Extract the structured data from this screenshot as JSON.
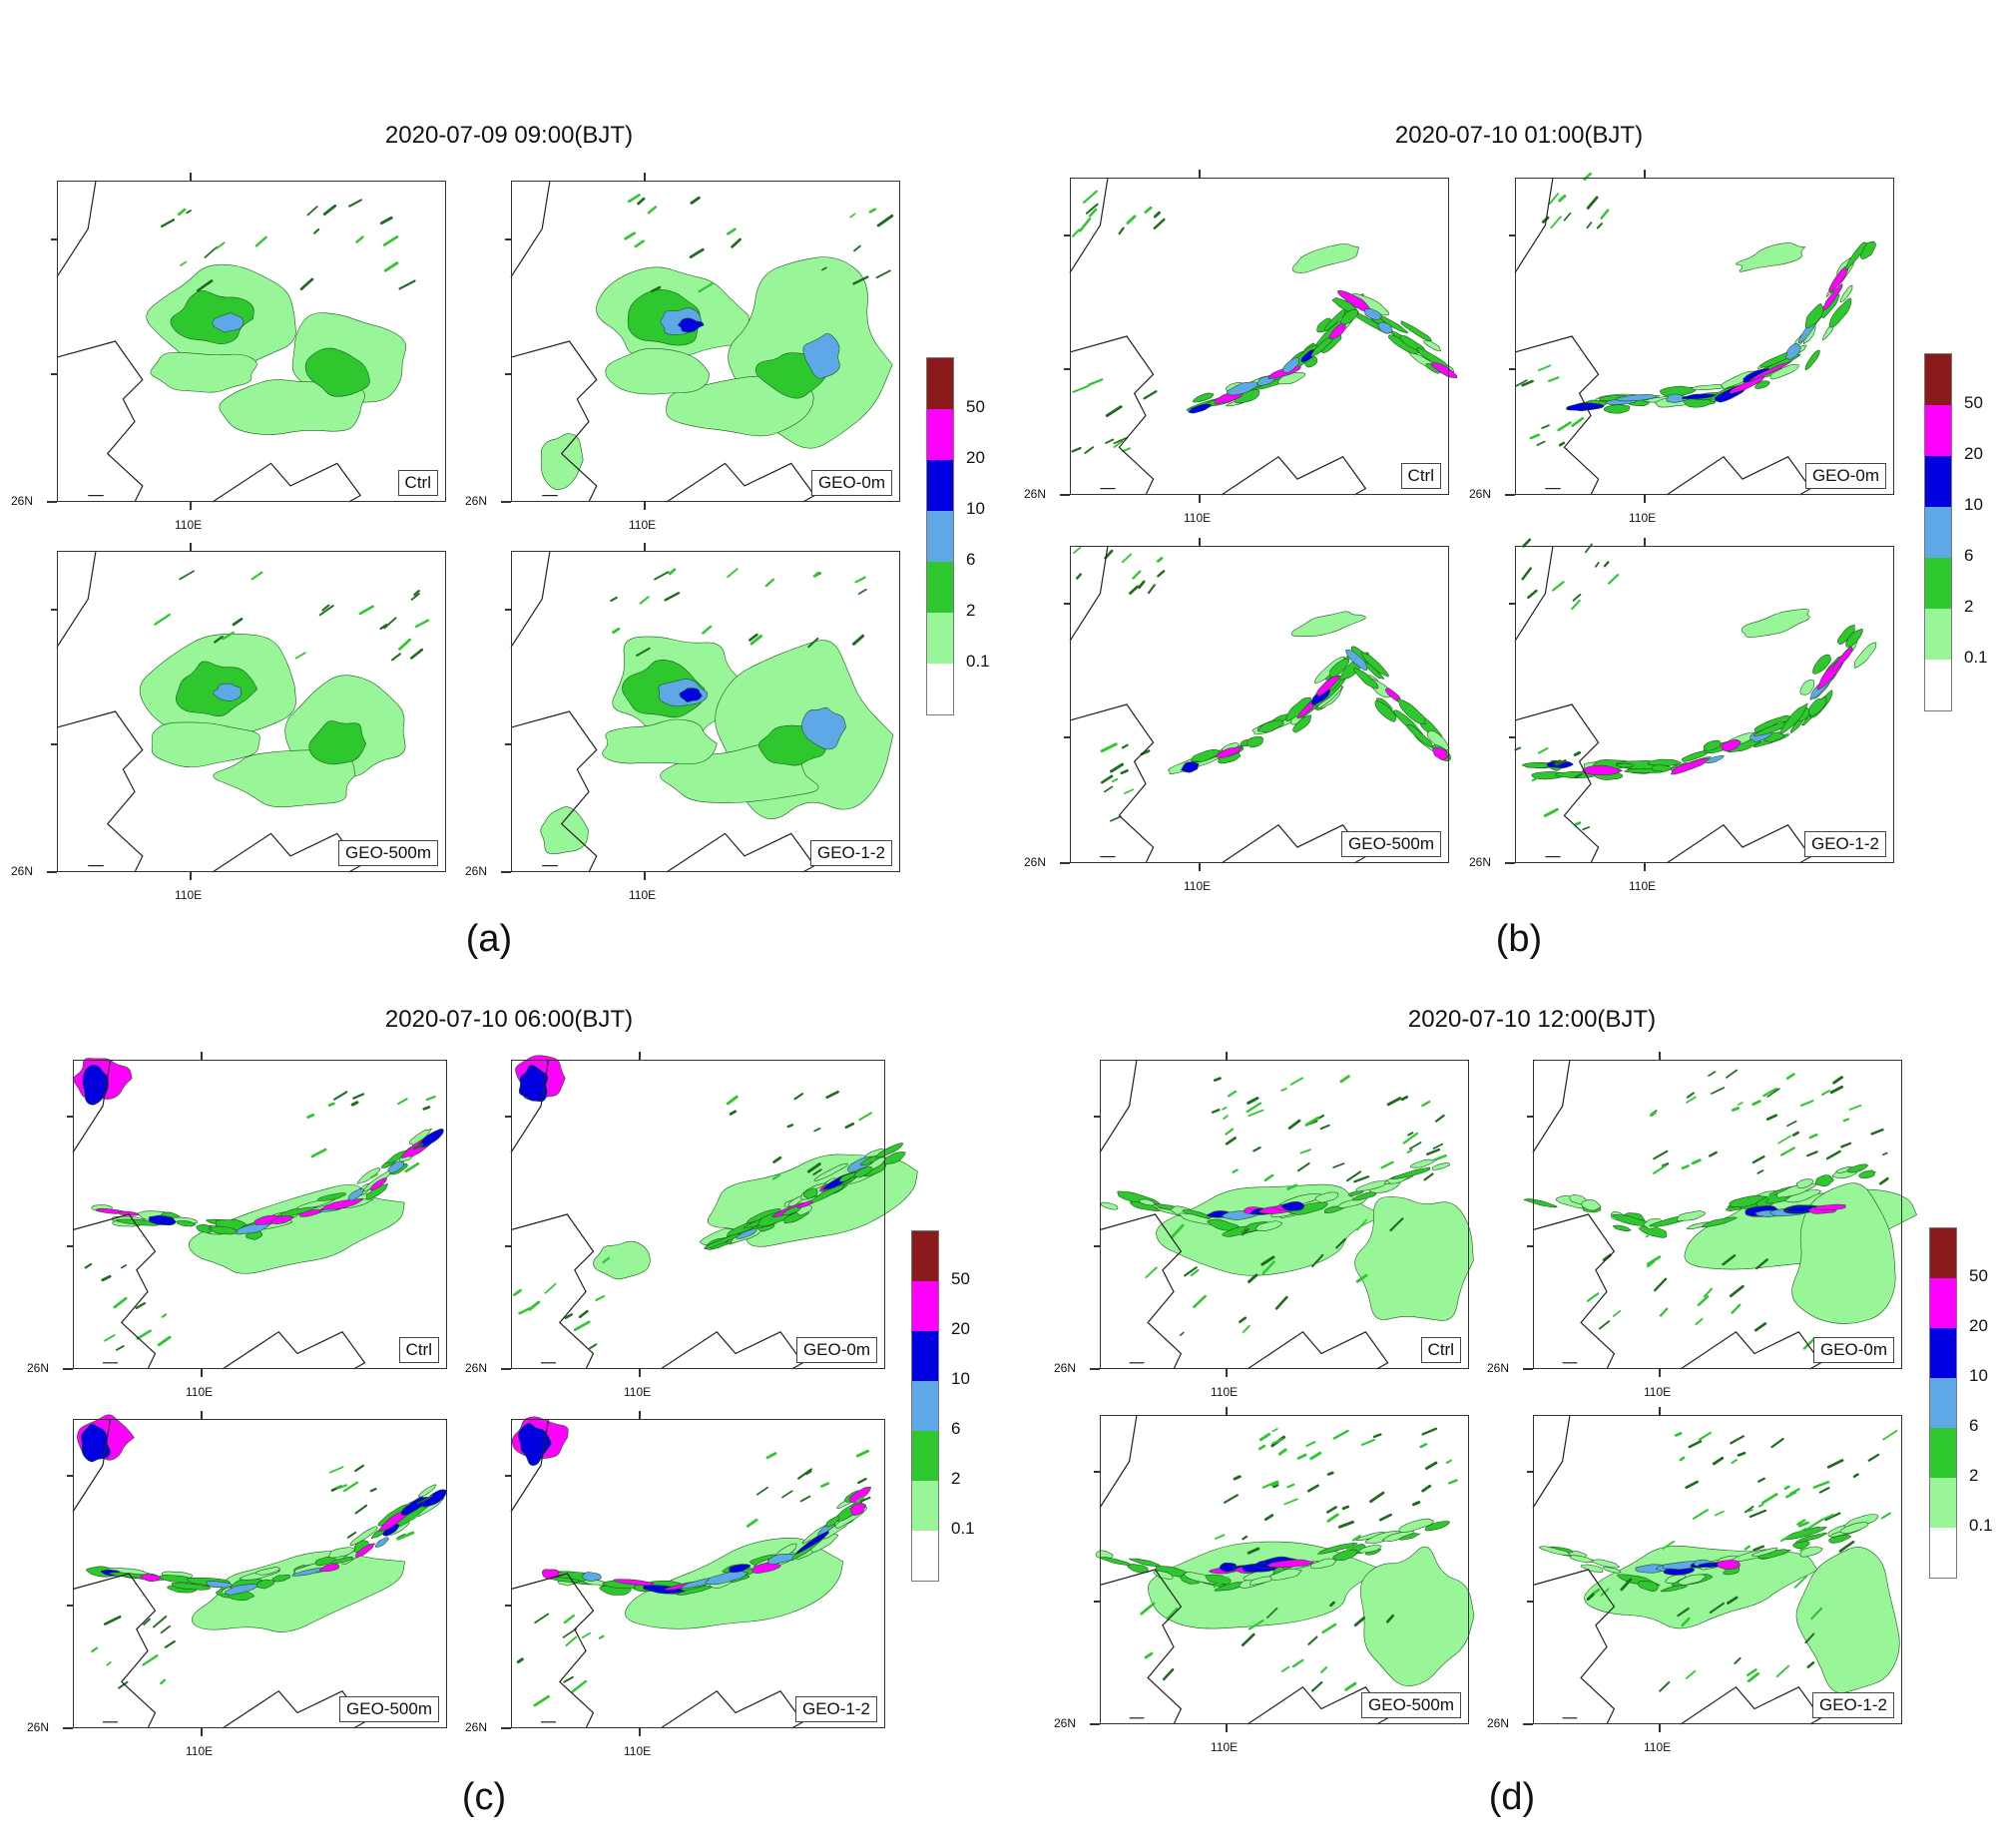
{
  "experiments": [
    "Ctrl",
    "GEO-0m",
    "GEO-500m",
    "GEO-1-2"
  ],
  "axis_labels": {
    "lat": "26N",
    "lon": "110E"
  },
  "colorbar": {
    "labels": [
      "50",
      "20",
      "10",
      "6",
      "2",
      "0.1"
    ],
    "colors": [
      "#8b1a1a",
      "#ff00ff",
      "#0000e0",
      "#5fa8e8",
      "#2ec82e",
      "#98f598",
      "#ffffff"
    ]
  },
  "groups": [
    {
      "letter": "(a)",
      "title": "2020-07-09 09:00(BJT)"
    },
    {
      "letter": "(b)",
      "title": "2020-07-10 01:00(BJT)"
    },
    {
      "letter": "(c)",
      "title": "2020-07-10 06:00(BJT)"
    },
    {
      "letter": "(d)",
      "title": "2020-07-10 12:00(BJT)"
    }
  ]
}
